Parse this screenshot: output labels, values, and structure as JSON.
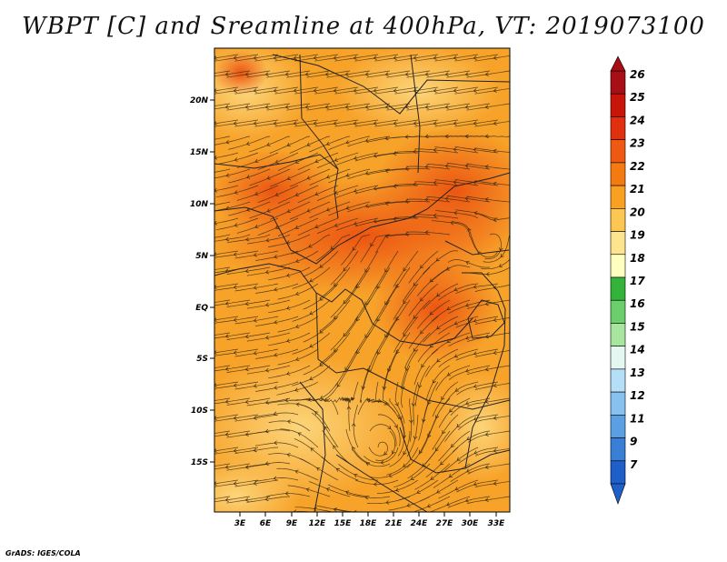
{
  "title": "WBPT [C] and Sreamline at 400hPa, VT: 2019073100",
  "credit": "GrADS: IGES/COLA",
  "map": {
    "lon_ticks": [
      "3E",
      "6E",
      "9E",
      "12E",
      "15E",
      "18E",
      "21E",
      "24E",
      "27E",
      "30E",
      "33E"
    ],
    "lat_ticks": [
      "20N",
      "15N",
      "10N",
      "5N",
      "EQ",
      "5S",
      "10S",
      "15S"
    ]
  },
  "colorbar": {
    "labels": [
      "26",
      "25",
      "24",
      "23",
      "22",
      "21",
      "20",
      "19",
      "18",
      "17",
      "16",
      "15",
      "14",
      "13",
      "12",
      "11",
      "9",
      "7"
    ],
    "colors": [
      "#a50f15",
      "#c8150a",
      "#e0300e",
      "#ef5a12",
      "#f47a12",
      "#f9a023",
      "#fbc652",
      "#fde58f",
      "#ffffc0",
      "#34b33a",
      "#6bd06b",
      "#a8e6a0",
      "#e4f7f0",
      "#b5def7",
      "#86c1ef",
      "#5ba0e3",
      "#3a7fd6",
      "#1f5fc9"
    ]
  }
}
